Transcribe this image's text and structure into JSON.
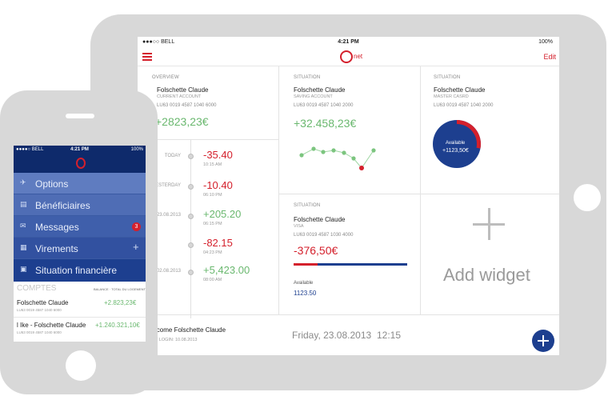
{
  "tablet": {
    "status": {
      "carrier": "●●●○○ BELL",
      "time": "4:21 PM",
      "battery": "100%"
    },
    "nav": {
      "logo_text": "net",
      "edit": "Edit"
    },
    "overview": {
      "section": "OVERVIEW",
      "name": "Folschette Claude",
      "type": "CURRENT ACCOUNT",
      "iban": "LU63 0019 4587 1040 6000",
      "balance": "+2823,23€",
      "transactions": [
        {
          "date": "TODAY",
          "amount": "-35.40",
          "time": "10:15 AM",
          "sign": "neg"
        },
        {
          "date": "ESTERDAY",
          "amount": "-10.40",
          "time": "06:10 PM",
          "sign": "neg"
        },
        {
          "date": "23.08.2013",
          "amount": "+205.20",
          "time": "06:15 PM",
          "sign": "pos"
        },
        {
          "date": "",
          "amount": "-82.15",
          "time": "04:23 PM",
          "sign": "neg"
        },
        {
          "date": "02.08.2013",
          "amount": "+5,423.00",
          "time": "08:00 AM",
          "sign": "pos"
        }
      ]
    },
    "saving": {
      "section": "SITUATION",
      "name": "Folschette Claude",
      "type": "SAVING ACCOUNT",
      "iban": "LU63 0019 4587 1040 2000",
      "balance": "+32.458,23€"
    },
    "master": {
      "section": "SITUATION",
      "name": "Folschette Claude",
      "type": "MASTER CASRD",
      "iban": "LU63 0019 4587 1040 2000",
      "donut_label": "Available",
      "donut_value": "+1123,50€",
      "used_fraction": 0.28
    },
    "visa": {
      "section": "SITUATION",
      "name": "Folschette Claude",
      "type": "VISA",
      "iban": "LU63 0019 4587 1030 4000",
      "balance": "-376,50€",
      "available_label": "Available",
      "available_value": "1123.50"
    },
    "add_widget": "Add widget",
    "footer": {
      "welcome": "lcome Folschette Claude",
      "last_login": "T LOGIN: 10.08.2013",
      "date": "Friday, 23.08.2013",
      "time": "12:15"
    }
  },
  "phone": {
    "status": {
      "carrier": "●●●●○ BELL",
      "time": "4:21 PM",
      "battery": "100%"
    },
    "menu": [
      {
        "label": "Options",
        "icon": "options-icon"
      },
      {
        "label": "Bénéficiaires",
        "icon": "beneficiaries-icon"
      },
      {
        "label": "Messages",
        "icon": "mail-icon",
        "badge": "3"
      },
      {
        "label": "Virements",
        "icon": "transfer-icon"
      },
      {
        "label": "Situation financière",
        "icon": "chart-icon"
      }
    ],
    "accounts": {
      "title": "COMPTES",
      "balance_tag": "BALANCE   ·   TOTAL DU LOGEMENT",
      "rows": [
        {
          "name": "Folschette Claude",
          "iban": "LU63 0019 4587 1040 6000",
          "amount": "+2.823,23€"
        },
        {
          "name": "l Ike - Folschette Claude",
          "iban": "LU63 0019 4587 1040 6000",
          "amount": "+1.240.321,10€"
        }
      ]
    }
  },
  "colors": {
    "red": "#d4202c",
    "green": "#6ab86f",
    "navy": "#1d3f8f"
  }
}
